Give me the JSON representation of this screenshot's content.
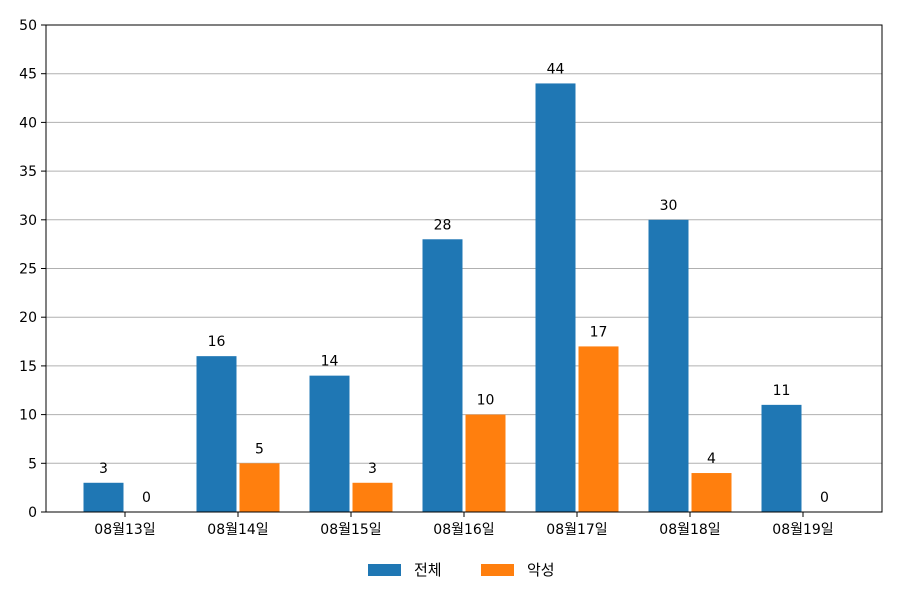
{
  "chart_data": {
    "type": "bar",
    "categories": [
      "08월13일",
      "08월14일",
      "08월15일",
      "08월16일",
      "08월17일",
      "08월18일",
      "08월19일"
    ],
    "series": [
      {
        "name": "전체",
        "color": "#1f77b4",
        "values": [
          3,
          16,
          14,
          28,
          44,
          30,
          11
        ]
      },
      {
        "name": "악성",
        "color": "#ff7f0e",
        "values": [
          0,
          5,
          3,
          10,
          17,
          4,
          0
        ]
      }
    ],
    "ylim": [
      0,
      50
    ],
    "yticks": [
      0,
      5,
      10,
      15,
      20,
      25,
      30,
      35,
      40,
      45,
      50
    ],
    "grid": true,
    "legend_position": "bottom-center",
    "data_labels": true
  }
}
